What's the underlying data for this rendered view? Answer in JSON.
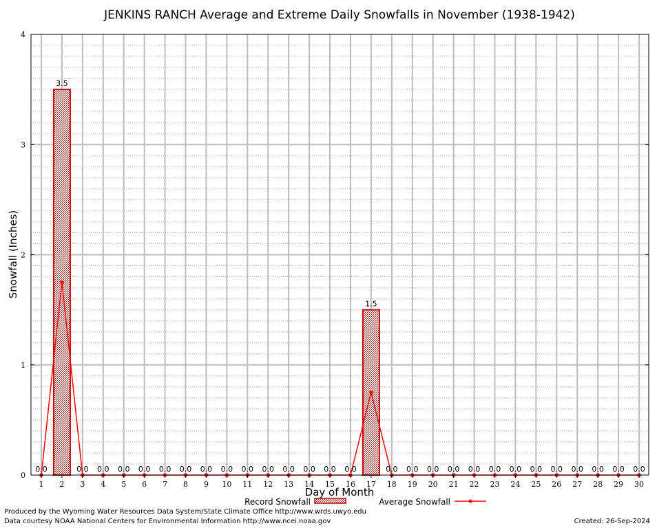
{
  "chart_data": {
    "type": "bar",
    "title": "JENKINS RANCH Average and Extreme Daily Snowfalls in November (1938-1942)",
    "xlabel": "Day of Month",
    "ylabel": "Snowfall (Inches)",
    "ylim": [
      0,
      4
    ],
    "yticks": [
      "0",
      "1",
      "2",
      "3",
      "4"
    ],
    "categories": [
      "1",
      "2",
      "3",
      "4",
      "5",
      "6",
      "7",
      "8",
      "9",
      "10",
      "11",
      "12",
      "13",
      "14",
      "15",
      "16",
      "17",
      "18",
      "19",
      "20",
      "21",
      "22",
      "23",
      "24",
      "25",
      "26",
      "27",
      "28",
      "29",
      "30"
    ],
    "series": [
      {
        "name": "Record Snowfall",
        "type": "bar",
        "color": "#cc0000",
        "values": [
          0,
          3.5,
          0,
          0,
          0,
          0,
          0,
          0,
          0,
          0,
          0,
          0,
          0,
          0,
          0,
          0,
          1.5,
          0,
          0,
          0,
          0,
          0,
          0,
          0,
          0,
          0,
          0,
          0,
          0,
          0
        ],
        "labels": [
          "0.0",
          "3.5",
          "0.0",
          "0.0",
          "0.0",
          "0.0",
          "0.0",
          "0.0",
          "0.0",
          "0.0",
          "0.0",
          "0.0",
          "0.0",
          "0.0",
          "0.0",
          "0.0",
          "1.5",
          "0.0",
          "0.0",
          "0.0",
          "0.0",
          "0.0",
          "0.0",
          "0.0",
          "0.0",
          "0.0",
          "0.0",
          "0.0",
          "0.0",
          "0.0"
        ]
      },
      {
        "name": "Average Snowfall",
        "type": "line",
        "color": "#ff0000",
        "values": [
          0,
          1.75,
          0,
          0,
          0,
          0,
          0,
          0,
          0,
          0,
          0,
          0,
          0,
          0,
          0,
          0,
          0.75,
          0,
          0,
          0,
          0,
          0,
          0,
          0,
          0,
          0,
          0,
          0,
          0,
          0
        ]
      }
    ],
    "grid": true,
    "legend_position": "bottom"
  },
  "footer": {
    "produced_by": "Produced by the Wyoming Water Resources Data System/State Climate Office http://www.wrds.uwyo.edu",
    "courtesy": "Data courtesy NOAA National Centers for Environmental Information http://www.ncei.noaa.gov",
    "created": "Created:  26-Sep-2024"
  }
}
